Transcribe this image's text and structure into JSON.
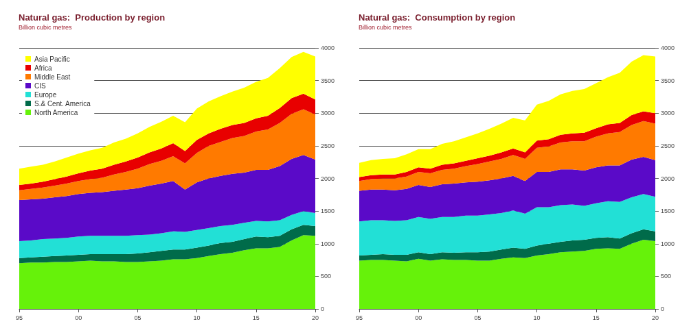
{
  "chart_data": [
    {
      "type": "area",
      "title": "Natural gas:  Production by region",
      "subtitle": "Billion cubic metres",
      "stacked": true,
      "legend": "top left",
      "grid": "y",
      "x": [
        1995,
        1996,
        1997,
        1998,
        1999,
        2000,
        2001,
        2002,
        2003,
        2004,
        2005,
        2006,
        2007,
        2008,
        2009,
        2010,
        2011,
        2012,
        2013,
        2014,
        2015,
        2016,
        2017,
        2018,
        2019,
        2020
      ],
      "xlim": [
        1995,
        2020
      ],
      "xticks": [
        {
          "value": 1995,
          "label": "95"
        },
        {
          "value": 2000,
          "label": "00"
        },
        {
          "value": 2005,
          "label": "05"
        },
        {
          "value": 2010,
          "label": "10"
        },
        {
          "value": 2015,
          "label": "15"
        },
        {
          "value": 2020,
          "label": "20"
        }
      ],
      "ylim": [
        0,
        4000
      ],
      "yticks": [
        0,
        500,
        1000,
        1500,
        2000,
        2500,
        3000,
        3500,
        4000
      ],
      "series": [
        {
          "name": "North America",
          "color": "#66f20a",
          "values": [
            700,
            710,
            710,
            720,
            720,
            730,
            740,
            730,
            730,
            720,
            720,
            730,
            740,
            760,
            760,
            780,
            810,
            840,
            860,
            900,
            930,
            930,
            950,
            1050,
            1130,
            1120
          ]
        },
        {
          "name": "S.& Cent. America",
          "color": "#006b4a",
          "values": [
            80,
            80,
            90,
            90,
            100,
            100,
            100,
            110,
            110,
            120,
            130,
            140,
            150,
            150,
            150,
            160,
            160,
            170,
            170,
            170,
            180,
            170,
            170,
            170,
            160,
            150
          ]
        },
        {
          "name": "Europe",
          "color": "#22e0d6",
          "values": [
            260,
            260,
            270,
            270,
            270,
            280,
            280,
            280,
            280,
            280,
            280,
            270,
            270,
            280,
            270,
            270,
            270,
            260,
            260,
            250,
            240,
            240,
            240,
            220,
            210,
            200
          ]
        },
        {
          "name": "CIS",
          "color": "#5a0ac8",
          "values": [
            630,
            630,
            620,
            630,
            640,
            650,
            660,
            670,
            690,
            710,
            720,
            750,
            760,
            770,
            650,
            730,
            760,
            770,
            780,
            770,
            780,
            790,
            830,
            860,
            860,
            820
          ]
        },
        {
          "name": "Middle East",
          "color": "#ff7a00",
          "values": [
            150,
            160,
            170,
            180,
            190,
            200,
            210,
            220,
            250,
            270,
            300,
            330,
            350,
            380,
            400,
            450,
            500,
            520,
            550,
            560,
            590,
            620,
            660,
            690,
            700,
            690
          ]
        },
        {
          "name": "Africa",
          "color": "#e80000",
          "values": [
            80,
            80,
            90,
            100,
            110,
            120,
            130,
            140,
            150,
            160,
            170,
            180,
            190,
            200,
            190,
            200,
            190,
            200,
            200,
            200,
            200,
            210,
            230,
            240,
            240,
            230
          ]
        },
        {
          "name": "Asia Pacific",
          "color": "#ffff00",
          "values": [
            250,
            260,
            260,
            270,
            290,
            300,
            310,
            320,
            340,
            350,
            370,
            390,
            410,
            420,
            440,
            480,
            490,
            500,
            510,
            540,
            560,
            580,
            610,
            630,
            640,
            660
          ]
        }
      ]
    },
    {
      "type": "area",
      "title": "Natural gas:  Consumption by region",
      "subtitle": "Billion cubic metres",
      "stacked": true,
      "grid": "y",
      "x": [
        1995,
        1996,
        1997,
        1998,
        1999,
        2000,
        2001,
        2002,
        2003,
        2004,
        2005,
        2006,
        2007,
        2008,
        2009,
        2010,
        2011,
        2012,
        2013,
        2014,
        2015,
        2016,
        2017,
        2018,
        2019,
        2020
      ],
      "xlim": [
        1995,
        2020
      ],
      "xticks": [
        {
          "value": 1995,
          "label": "95"
        },
        {
          "value": 2000,
          "label": "00"
        },
        {
          "value": 2005,
          "label": "05"
        },
        {
          "value": 2010,
          "label": "10"
        },
        {
          "value": 2015,
          "label": "15"
        },
        {
          "value": 2020,
          "label": "20"
        }
      ],
      "ylim": [
        0,
        4000
      ],
      "yticks": [
        0,
        500,
        1000,
        1500,
        2000,
        2500,
        3000,
        3500,
        4000
      ],
      "series": [
        {
          "color": "#66f20a",
          "values": [
            740,
            750,
            750,
            740,
            730,
            770,
            740,
            760,
            750,
            750,
            740,
            740,
            770,
            790,
            780,
            820,
            840,
            870,
            880,
            890,
            920,
            930,
            920,
            1000,
            1060,
            1040
          ]
        },
        {
          "color": "#006b4a",
          "values": [
            80,
            80,
            90,
            90,
            100,
            100,
            100,
            110,
            110,
            120,
            130,
            140,
            140,
            150,
            140,
            150,
            160,
            160,
            170,
            170,
            170,
            170,
            160,
            160,
            160,
            150
          ]
        },
        {
          "color": "#22e0d6",
          "values": [
            520,
            530,
            520,
            520,
            530,
            540,
            540,
            540,
            550,
            560,
            560,
            570,
            560,
            570,
            540,
            590,
            560,
            560,
            550,
            520,
            530,
            550,
            560,
            550,
            540,
            530
          ]
        },
        {
          "color": "#5a0ac8",
          "values": [
            470,
            470,
            470,
            470,
            480,
            490,
            490,
            500,
            510,
            510,
            520,
            520,
            530,
            530,
            500,
            540,
            540,
            550,
            540,
            540,
            550,
            550,
            560,
            580,
            570,
            560
          ]
        },
        {
          "color": "#ff7a00",
          "values": [
            150,
            160,
            170,
            180,
            190,
            200,
            210,
            220,
            230,
            250,
            270,
            290,
            300,
            320,
            340,
            370,
            390,
            410,
            430,
            450,
            470,
            490,
            510,
            530,
            550,
            560
          ]
        },
        {
          "color": "#e80000",
          "values": [
            60,
            60,
            60,
            60,
            70,
            70,
            70,
            80,
            80,
            80,
            90,
            90,
            100,
            100,
            100,
            110,
            110,
            120,
            120,
            130,
            130,
            140,
            140,
            150,
            150,
            160
          ]
        },
        {
          "color": "#ffff00",
          "values": [
            220,
            230,
            240,
            250,
            270,
            280,
            300,
            320,
            340,
            360,
            380,
            410,
            440,
            470,
            490,
            550,
            590,
            620,
            650,
            670,
            690,
            720,
            770,
            820,
            860,
            870
          ]
        }
      ]
    }
  ]
}
